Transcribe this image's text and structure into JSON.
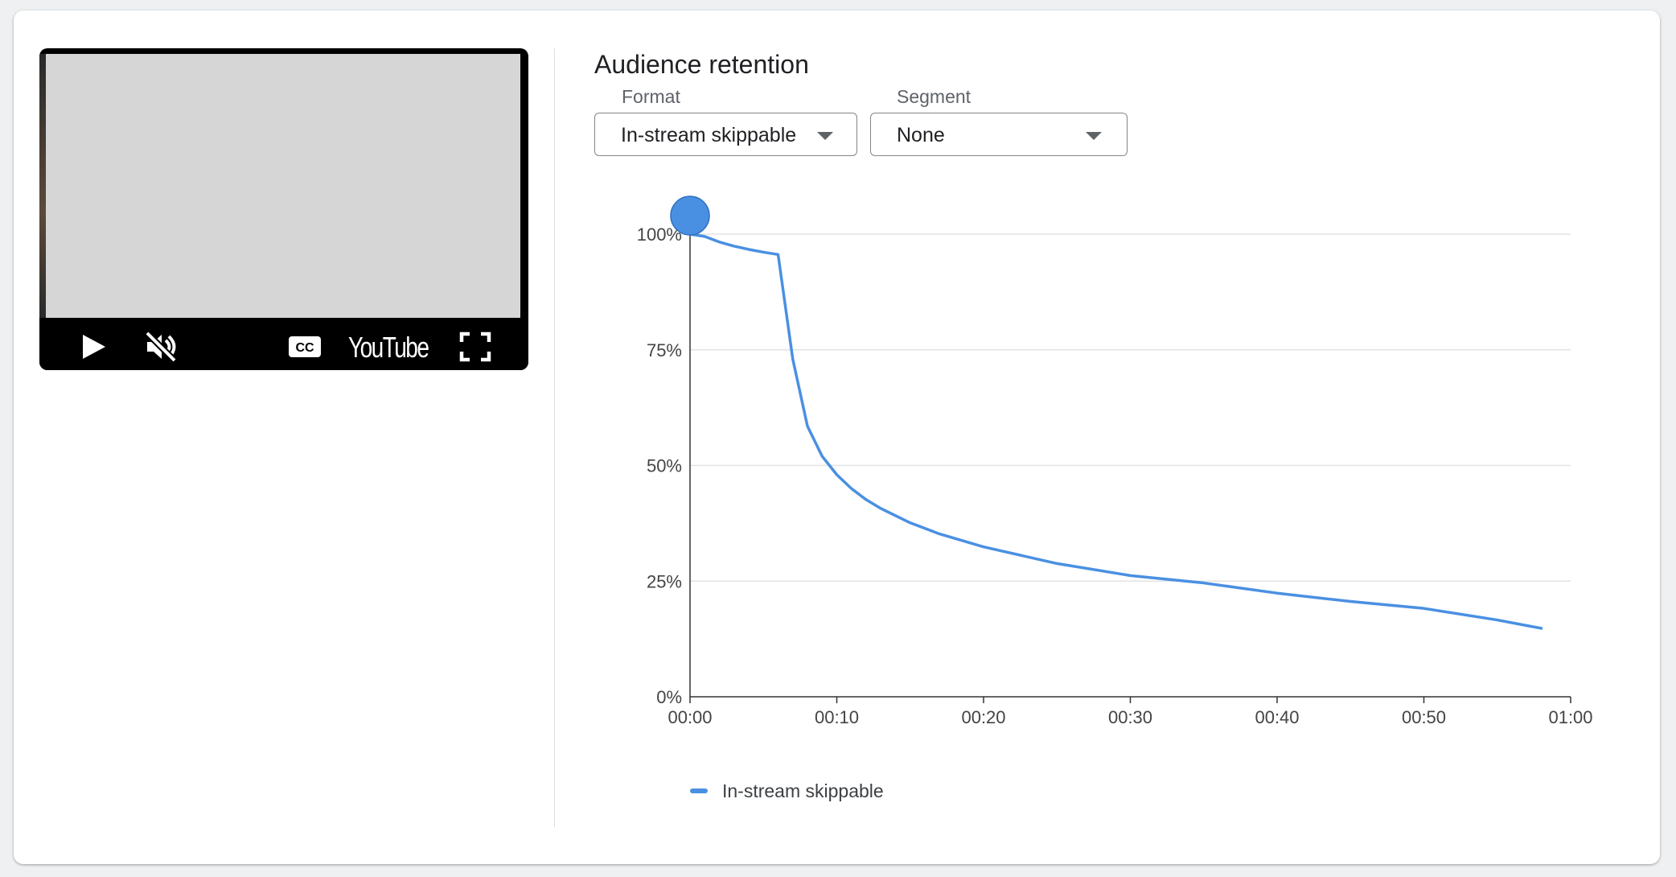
{
  "player": {
    "brand": "YouTube",
    "icons": [
      "play-icon",
      "volume-muted-icon",
      "closed-captions-icon",
      "youtube-logo",
      "fullscreen-icon"
    ],
    "cc_text": "CC"
  },
  "panel": {
    "title": "Audience retention",
    "format": {
      "label": "Format",
      "value": "In-stream skippable"
    },
    "segment": {
      "label": "Segment",
      "value": "None"
    }
  },
  "colors": {
    "series": "#4a90e2",
    "grid": "#e3e3e3",
    "axis": "#333333"
  },
  "chart_data": {
    "type": "line",
    "title": "",
    "xlabel": "",
    "ylabel": "",
    "x_ticks": [
      "00:00",
      "00:10",
      "00:20",
      "00:30",
      "00:40",
      "00:50",
      "01:00"
    ],
    "y_ticks": [
      "0%",
      "25%",
      "50%",
      "75%",
      "100%"
    ],
    "xlim": [
      0,
      60
    ],
    "ylim": [
      0,
      100
    ],
    "grid": true,
    "legend_position": "bottom-left",
    "series": [
      {
        "name": "In-stream skippable",
        "x": [
          0,
          1,
          2,
          3,
          4,
          5,
          6,
          7,
          8,
          9,
          10,
          11,
          12,
          13,
          15,
          17,
          20,
          25,
          30,
          35,
          40,
          45,
          50,
          55,
          58
        ],
        "y": [
          100,
          99.5,
          98.3,
          97.4,
          96.7,
          96.1,
          95.6,
          73,
          58.5,
          52,
          48,
          45,
          42.6,
          40.7,
          37.6,
          35.2,
          32.4,
          28.8,
          26.2,
          24.6,
          22.4,
          20.6,
          19.1,
          16.6,
          14.8
        ]
      }
    ],
    "highlight_point": {
      "x": 0,
      "y": 104
    }
  }
}
